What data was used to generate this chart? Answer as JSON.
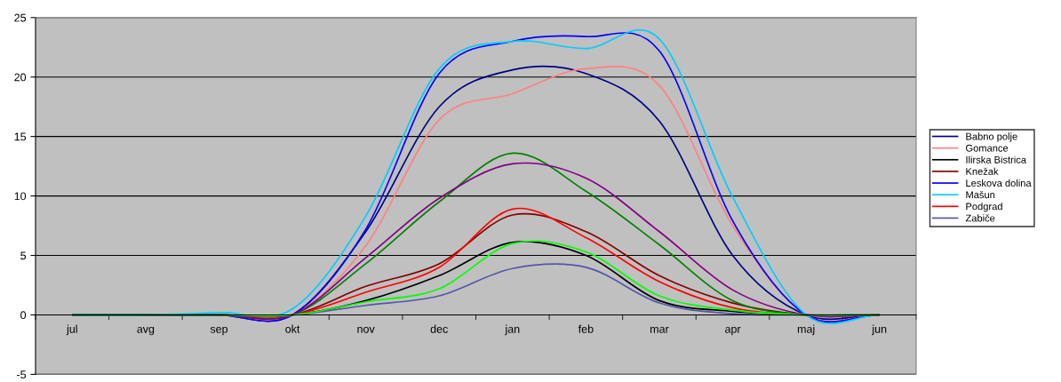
{
  "chart_data": {
    "type": "line",
    "categories": [
      "jul",
      "avg",
      "sep",
      "okt",
      "nov",
      "dec",
      "jan",
      "feb",
      "mar",
      "apr",
      "maj",
      "jun"
    ],
    "ylim": [
      -5,
      25
    ],
    "yticks": [
      -5,
      0,
      5,
      10,
      15,
      20,
      25
    ],
    "grid": "y",
    "legend": "right",
    "marker": "none",
    "line_style": "solid",
    "series": [
      {
        "name": "Babno polje",
        "color": "#000080",
        "values": [
          0,
          0,
          0,
          0,
          7.0,
          17.5,
          20.6,
          20.3,
          16.3,
          5.0,
          0,
          0
        ]
      },
      {
        "name": "Gomance",
        "color": "#ff8080",
        "values": [
          null,
          null,
          0,
          0,
          5.8,
          16.4,
          18.6,
          20.7,
          19.3,
          7.5,
          0,
          0
        ]
      },
      {
        "name": "Ilirska Bistrica",
        "color": "#000000",
        "values": [
          0,
          0,
          0,
          0,
          1.2,
          3.3,
          6.1,
          5.0,
          1.2,
          0.3,
          0,
          0
        ]
      },
      {
        "name": "Knežak",
        "color": "#800000",
        "values": [
          null,
          null,
          0,
          0,
          2.4,
          4.3,
          8.4,
          7.0,
          3.3,
          1.0,
          0,
          0
        ]
      },
      {
        "name": "Leskova dolina",
        "color": "#0000ff",
        "values": [
          0,
          0,
          0,
          0,
          7.2,
          20.3,
          23.0,
          23.4,
          22.2,
          7.9,
          0,
          0
        ]
      },
      {
        "name": "Mašun",
        "color": "#00ccff",
        "values": [
          0,
          0,
          0.2,
          0.5,
          8.3,
          20.7,
          23.0,
          22.4,
          23.2,
          9.9,
          0,
          0
        ]
      },
      {
        "name": "Podgrad",
        "color": "#ff0000",
        "values": [
          null,
          null,
          0,
          0,
          1.9,
          4.0,
          8.9,
          6.5,
          2.8,
          0.6,
          0,
          0
        ]
      },
      {
        "name": "Zabiče",
        "color": "#5555aa",
        "values": [
          0,
          0,
          0,
          0,
          0.8,
          1.6,
          3.9,
          4.0,
          1.0,
          0.1,
          0,
          0
        ]
      },
      {
        "color": "#008000",
        "values": [
          0,
          0,
          0,
          0,
          4.3,
          9.5,
          13.6,
          10.4,
          5.9,
          1.2,
          0,
          0
        ]
      },
      {
        "color": "#800080",
        "values": [
          0,
          0,
          0,
          0,
          4.8,
          9.8,
          12.7,
          11.5,
          7.0,
          2.1,
          0,
          0
        ]
      },
      {
        "color": "#00ff00",
        "values": [
          0,
          0,
          0,
          0,
          1.1,
          2.2,
          6.0,
          5.3,
          1.6,
          0.4,
          0,
          0
        ]
      }
    ]
  }
}
